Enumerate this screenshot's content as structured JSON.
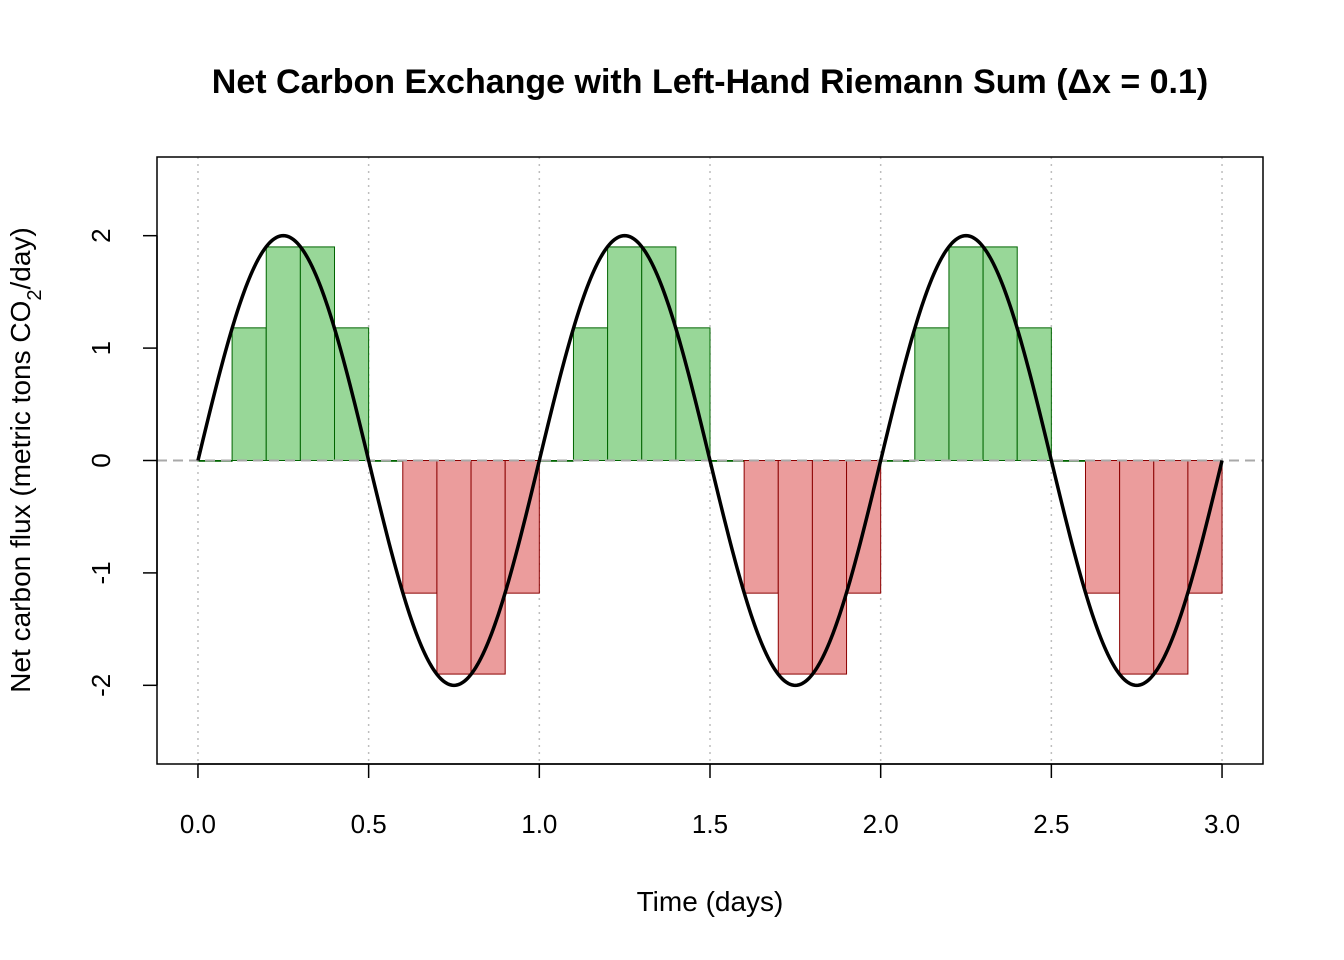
{
  "chart_data": {
    "type": "bar",
    "title": "Net Carbon Exchange with Left-Hand Riemann Sum (Δx = 0.1)",
    "xlabel": "Time (days)",
    "ylabel_main": "Net carbon flux (metric tons CO",
    "ylabel_sub": "2",
    "ylabel_end": "/day)",
    "xlim": [
      -0.12,
      3.12
    ],
    "ylim": [
      -2.7,
      2.7
    ],
    "x_ticks": [
      0.0,
      0.5,
      1.0,
      1.5,
      2.0,
      2.5,
      3.0
    ],
    "x_tick_labels": [
      "0.0",
      "0.5",
      "1.0",
      "1.5",
      "2.0",
      "2.5",
      "3.0"
    ],
    "y_ticks": [
      -2,
      -1,
      0,
      1,
      2
    ],
    "y_tick_labels": [
      "-2",
      "-1",
      "0",
      "1",
      "2"
    ],
    "grid": "vertical dotted at x ticks",
    "dx": 0.1,
    "function": {
      "amplitude": 2,
      "period": 1,
      "form": "sine"
    },
    "rect_left_edges": [
      0.0,
      0.1,
      0.2,
      0.3,
      0.4,
      0.5,
      0.6,
      0.7,
      0.8,
      0.9,
      1.0,
      1.1,
      1.2,
      1.3,
      1.4,
      1.5,
      1.6,
      1.7,
      1.8,
      1.9,
      2.0,
      2.1,
      2.2,
      2.3,
      2.4,
      2.5,
      2.6,
      2.7,
      2.8,
      2.9
    ],
    "rect_heights": [
      0,
      1.18,
      1.9,
      1.9,
      1.18,
      0,
      -1.18,
      -1.9,
      -1.9,
      -1.18,
      0,
      1.18,
      1.9,
      1.9,
      1.18,
      0,
      -1.18,
      -1.9,
      -1.9,
      -1.18,
      0,
      1.18,
      1.9,
      1.9,
      1.18,
      0,
      -1.18,
      -1.9,
      -1.9,
      -1.18
    ],
    "colors": {
      "positive_fill": "#98D798",
      "positive_stroke": "#006400",
      "negative_fill": "#EB9C9C",
      "negative_stroke": "#8B0000",
      "curve": "#000000",
      "zero_line": "#A9A9A9",
      "grid": "#BEBEBE"
    }
  }
}
